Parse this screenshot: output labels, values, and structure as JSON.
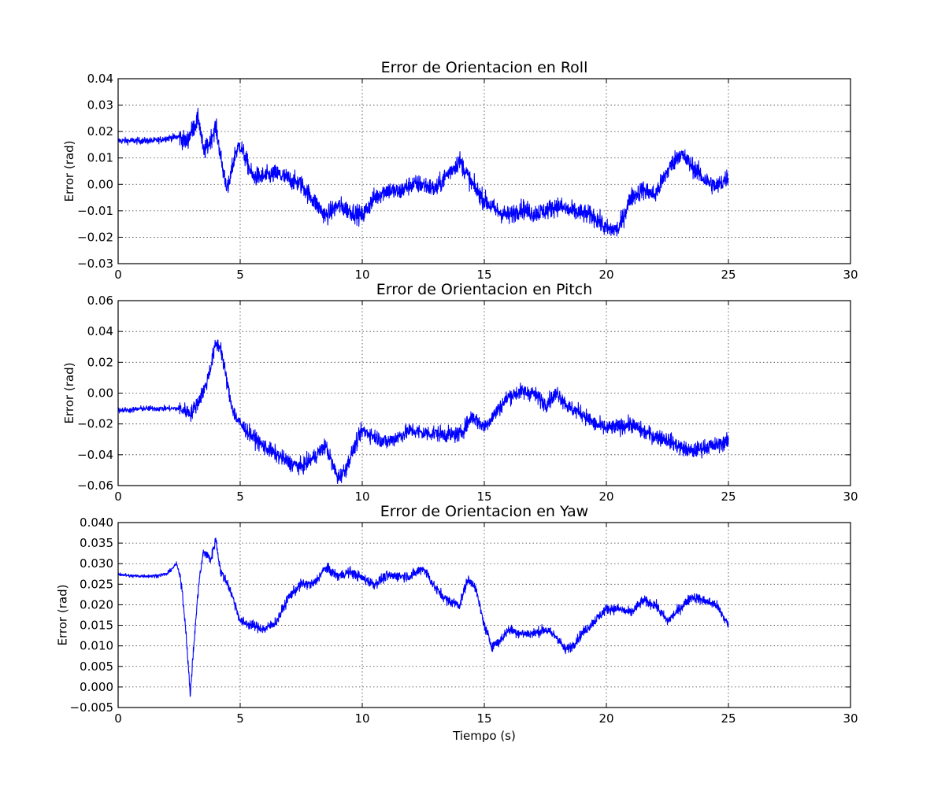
{
  "chart_data": [
    {
      "type": "line",
      "title": "Error de Orientacion en Roll",
      "xlabel": "",
      "ylabel": "Error (rad)",
      "xlim": [
        0,
        30
      ],
      "ylim": [
        -0.03,
        0.04
      ],
      "xticks": [
        0,
        5,
        10,
        15,
        20,
        25,
        30
      ],
      "xticklabels": [
        "0",
        "5",
        "10",
        "15",
        "20",
        "25",
        "30"
      ],
      "yticks": [
        -0.03,
        -0.02,
        -0.01,
        0.0,
        0.01,
        0.02,
        0.03,
        0.04
      ],
      "yticklabels": [
        "−0.03",
        "−0.02",
        "−0.01",
        "0.00",
        "0.01",
        "0.02",
        "0.03",
        "0.04"
      ],
      "grid": true,
      "color": "#0000ff",
      "noise": 0.0035,
      "series": [
        {
          "x": [
            0,
            0.5,
            1.0,
            1.5,
            2.0,
            2.5,
            2.8,
            3.0,
            3.3,
            3.5,
            3.7,
            4.0,
            4.3,
            4.5,
            4.8,
            5.0,
            5.5,
            6.0,
            6.5,
            7.0,
            7.5,
            8.0,
            8.5,
            9.0,
            9.5,
            10.0,
            10.5,
            11.0,
            11.5,
            12.0,
            12.5,
            13.0,
            13.5,
            14.0,
            14.5,
            15.0,
            15.5,
            16.0,
            16.5,
            17.0,
            17.5,
            18.0,
            18.5,
            19.0,
            19.5,
            20.0,
            20.5,
            21.0,
            21.5,
            22.0,
            22.5,
            23.0,
            23.5,
            24.0,
            24.5,
            25.0
          ],
          "y": [
            0.0165,
            0.0165,
            0.0165,
            0.0165,
            0.0175,
            0.018,
            0.016,
            0.02,
            0.025,
            0.012,
            0.015,
            0.022,
            0.005,
            -0.002,
            0.012,
            0.015,
            0.003,
            0.003,
            0.004,
            0.002,
            0.0,
            -0.006,
            -0.012,
            -0.008,
            -0.01,
            -0.012,
            -0.005,
            -0.002,
            -0.003,
            0.0,
            0.0,
            -0.002,
            0.004,
            0.009,
            0.0,
            -0.006,
            -0.01,
            -0.012,
            -0.009,
            -0.011,
            -0.01,
            -0.008,
            -0.01,
            -0.011,
            -0.012,
            -0.017,
            -0.017,
            -0.005,
            -0.002,
            -0.004,
            0.005,
            0.012,
            0.007,
            0.002,
            -0.001,
            0.003
          ]
        }
      ]
    },
    {
      "type": "line",
      "title": "Error de Orientacion en Pitch",
      "xlabel": "",
      "ylabel": "Error (rad)",
      "xlim": [
        0,
        30
      ],
      "ylim": [
        -0.06,
        0.06
      ],
      "xticks": [
        0,
        5,
        10,
        15,
        20,
        25,
        30
      ],
      "xticklabels": [
        "0",
        "5",
        "10",
        "15",
        "20",
        "25",
        "30"
      ],
      "yticks": [
        -0.06,
        -0.04,
        -0.02,
        0.0,
        0.02,
        0.04,
        0.06
      ],
      "yticklabels": [
        "−0.06",
        "−0.04",
        "−0.02",
        "0.00",
        "0.02",
        "0.04",
        "0.06"
      ],
      "grid": true,
      "color": "#0000ff",
      "noise": 0.005,
      "series": [
        {
          "x": [
            0,
            0.5,
            1.0,
            1.5,
            2.0,
            2.5,
            3.0,
            3.3,
            3.6,
            3.8,
            4.0,
            4.2,
            4.4,
            4.6,
            4.8,
            5.0,
            5.5,
            6.0,
            6.5,
            7.0,
            7.5,
            8.0,
            8.5,
            8.8,
            9.0,
            9.3,
            9.6,
            10.0,
            10.5,
            11.0,
            11.5,
            12.0,
            12.5,
            13.0,
            13.5,
            14.0,
            14.5,
            15.0,
            15.5,
            16.0,
            16.5,
            17.0,
            17.5,
            18.0,
            18.5,
            19.0,
            19.5,
            20.0,
            20.5,
            21.0,
            21.5,
            22.0,
            22.5,
            23.0,
            23.5,
            24.0,
            24.5,
            25.0
          ],
          "y": [
            -0.011,
            -0.011,
            -0.01,
            -0.01,
            -0.01,
            -0.01,
            -0.013,
            -0.005,
            0.005,
            0.018,
            0.032,
            0.03,
            0.012,
            -0.005,
            -0.015,
            -0.02,
            -0.028,
            -0.035,
            -0.04,
            -0.045,
            -0.048,
            -0.042,
            -0.034,
            -0.047,
            -0.055,
            -0.05,
            -0.038,
            -0.024,
            -0.028,
            -0.032,
            -0.028,
            -0.024,
            -0.026,
            -0.026,
            -0.027,
            -0.027,
            -0.015,
            -0.022,
            -0.012,
            -0.002,
            0.001,
            0.0,
            -0.007,
            0.0,
            -0.01,
            -0.013,
            -0.02,
            -0.023,
            -0.022,
            -0.02,
            -0.025,
            -0.028,
            -0.03,
            -0.035,
            -0.038,
            -0.035,
            -0.034,
            -0.031
          ]
        }
      ]
    },
    {
      "type": "line",
      "title": "Error de Orientacion en Yaw",
      "xlabel": "Tiempo (s)",
      "ylabel": "Error (rad)",
      "xlim": [
        0,
        30
      ],
      "ylim": [
        -0.005,
        0.04
      ],
      "xticks": [
        0,
        5,
        10,
        15,
        20,
        25,
        30
      ],
      "xticklabels": [
        "0",
        "5",
        "10",
        "15",
        "20",
        "25",
        "30"
      ],
      "yticks": [
        -0.005,
        0.0,
        0.005,
        0.01,
        0.015,
        0.02,
        0.025,
        0.03,
        0.035,
        0.04
      ],
      "yticklabels": [
        "−0.005",
        "0.000",
        "0.005",
        "0.010",
        "0.015",
        "0.020",
        "0.025",
        "0.030",
        "0.035",
        "0.040"
      ],
      "grid": true,
      "color": "#0000ff",
      "noise": 0.0012,
      "series": [
        {
          "x": [
            0,
            0.5,
            1.0,
            1.5,
            2.0,
            2.4,
            2.6,
            2.8,
            2.95,
            3.1,
            3.3,
            3.5,
            3.8,
            4.0,
            4.2,
            4.5,
            4.8,
            5.0,
            5.5,
            6.0,
            6.5,
            7.0,
            7.5,
            8.0,
            8.5,
            9.0,
            9.5,
            10.0,
            10.5,
            11.0,
            11.5,
            12.0,
            12.5,
            13.0,
            13.5,
            14.0,
            14.3,
            14.6,
            14.8,
            15.0,
            15.3,
            15.6,
            16.0,
            16.5,
            17.0,
            17.5,
            18.0,
            18.3,
            18.6,
            19.0,
            19.5,
            20.0,
            20.5,
            21.0,
            21.5,
            22.0,
            22.5,
            23.0,
            23.5,
            24.0,
            24.5,
            25.0
          ],
          "y": [
            0.0275,
            0.027,
            0.027,
            0.027,
            0.0275,
            0.03,
            0.025,
            0.012,
            -0.002,
            0.01,
            0.025,
            0.033,
            0.031,
            0.036,
            0.028,
            0.025,
            0.02,
            0.016,
            0.015,
            0.014,
            0.016,
            0.022,
            0.025,
            0.025,
            0.029,
            0.027,
            0.028,
            0.0265,
            0.025,
            0.027,
            0.027,
            0.027,
            0.029,
            0.024,
            0.021,
            0.02,
            0.026,
            0.025,
            0.02,
            0.015,
            0.01,
            0.011,
            0.014,
            0.013,
            0.013,
            0.014,
            0.012,
            0.009,
            0.01,
            0.013,
            0.016,
            0.019,
            0.019,
            0.018,
            0.021,
            0.02,
            0.016,
            0.019,
            0.022,
            0.021,
            0.02,
            0.015
          ]
        }
      ]
    }
  ]
}
